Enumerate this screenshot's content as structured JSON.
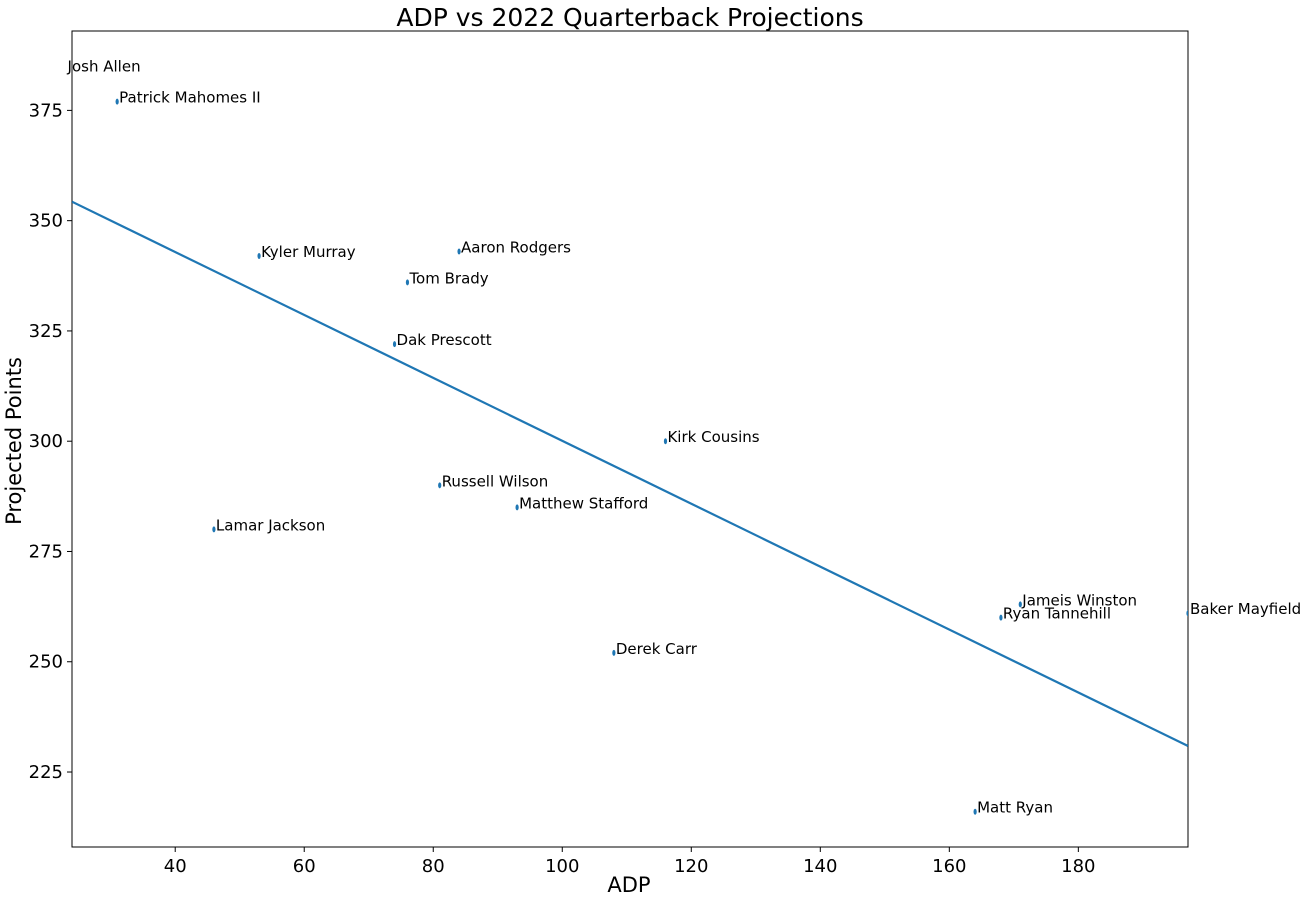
{
  "chart_data": {
    "type": "scatter",
    "title": "ADP vs 2022 Quarterback Projections",
    "xlabel": "ADP",
    "ylabel": "Projected Points",
    "xlim": [
      24,
      197
    ],
    "ylim": [
      208,
      393
    ],
    "xticks": [
      40,
      60,
      80,
      100,
      120,
      140,
      160,
      180
    ],
    "yticks": [
      225,
      250,
      275,
      300,
      325,
      350,
      375
    ],
    "grid": false,
    "point_color": "#1f77b4",
    "trendline": {
      "x": [
        24,
        197
      ],
      "y": [
        354.3,
        230.9
      ],
      "color": "#1f77b4"
    },
    "points": [
      {
        "label": "Josh Allen",
        "x": 23,
        "y": 384
      },
      {
        "label": "Patrick Mahomes II",
        "x": 31,
        "y": 377
      },
      {
        "label": "Kyler Murray",
        "x": 53,
        "y": 342
      },
      {
        "label": "Aaron Rodgers",
        "x": 84,
        "y": 343
      },
      {
        "label": "Tom Brady",
        "x": 76,
        "y": 336
      },
      {
        "label": "Dak Prescott",
        "x": 74,
        "y": 322
      },
      {
        "label": "Kirk Cousins",
        "x": 116,
        "y": 300
      },
      {
        "label": "Russell Wilson",
        "x": 81,
        "y": 290
      },
      {
        "label": "Matthew Stafford",
        "x": 93,
        "y": 285
      },
      {
        "label": "Lamar Jackson",
        "x": 46,
        "y": 280
      },
      {
        "label": "Jameis Winston",
        "x": 171,
        "y": 263
      },
      {
        "label": "Ryan Tannehill",
        "x": 168,
        "y": 260
      },
      {
        "label": "Baker Mayfield",
        "x": 197,
        "y": 261
      },
      {
        "label": "Derek Carr",
        "x": 108,
        "y": 252
      },
      {
        "label": "Matt Ryan",
        "x": 164,
        "y": 216
      }
    ]
  }
}
